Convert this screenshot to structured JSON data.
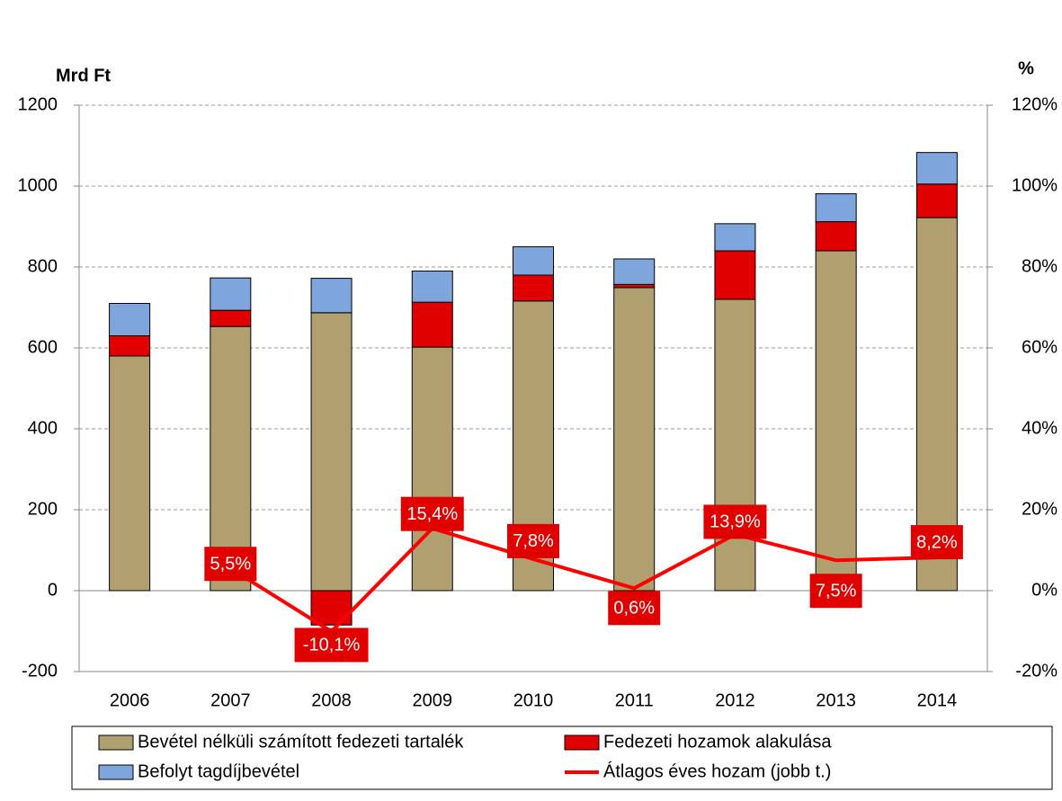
{
  "chart_data": {
    "type": "bar",
    "y_label": "Mrd Ft",
    "y2_label": "%",
    "categories": [
      "2006",
      "2007",
      "2008",
      "2009",
      "2010",
      "2011",
      "2012",
      "2013",
      "2014"
    ],
    "series": [
      {
        "name": "Bevétel nélküli számított fedezeti tartalék",
        "color": "#b0a070",
        "values": [
          580,
          653,
          687,
          602,
          716,
          749,
          720,
          840,
          922
        ]
      },
      {
        "name": "Fedezeti hozamok alakulása",
        "color": "#e00000",
        "values": [
          50,
          40,
          -85,
          111,
          64,
          8,
          120,
          72,
          83
        ]
      },
      {
        "name": "Befolyt tagdíjbevétel",
        "color": "#7ea6dc",
        "values": [
          80,
          80,
          85,
          77,
          70,
          63,
          67,
          69,
          78
        ]
      },
      {
        "name": "Átlagos éves hozam (jobb t.)",
        "color": "#ff0000",
        "type": "line",
        "axis": "y2",
        "values": [
          null,
          5.5,
          -10.1,
          15.4,
          7.8,
          0.6,
          13.9,
          7.5,
          8.2
        ],
        "value_labels": [
          null,
          "5,5%",
          "-10,1%",
          "15,4%",
          "7,8%",
          "0,6%",
          "13,9%",
          "7,5%",
          "8,2%"
        ]
      }
    ],
    "ylim": [
      -200,
      1200
    ],
    "yticks": [
      -200,
      0,
      200,
      400,
      600,
      800,
      1000,
      1200
    ],
    "y2lim": [
      -20,
      120
    ],
    "y2ticks": [
      {
        "value": -20,
        "label": "-20%"
      },
      {
        "value": 0,
        "label": "0%"
      },
      {
        "value": 20,
        "label": "20%"
      },
      {
        "value": 40,
        "label": "40%"
      },
      {
        "value": 60,
        "label": "60%"
      },
      {
        "value": 80,
        "label": "80%"
      },
      {
        "value": 100,
        "label": "100%"
      },
      {
        "value": 120,
        "label": "120%"
      }
    ],
    "grid": true,
    "legend": "bottom"
  }
}
